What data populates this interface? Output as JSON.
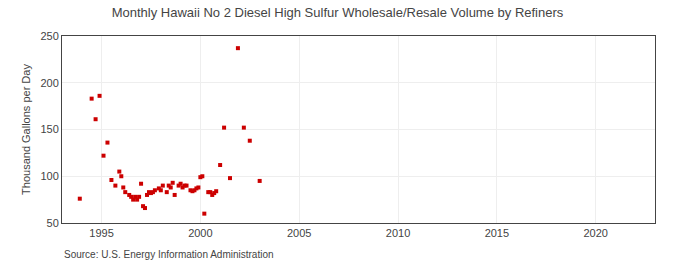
{
  "chart_data": {
    "type": "scatter",
    "title": "Monthly Hawaii No 2 Diesel High Sulfur Wholesale/Resale Volume by Refiners",
    "ylabel": "Thousand Gallons per Day",
    "annotations": [
      "Source: U.S. Energy Information Administration"
    ],
    "color": "#cc0000",
    "marker": "square",
    "grid": true,
    "xlim": [
      1993.0,
      2023.0
    ],
    "ylim": [
      50,
      250
    ],
    "xticks": [
      1995,
      2000,
      2005,
      2010,
      2015,
      2020
    ],
    "yticks": [
      50,
      100,
      150,
      200,
      250
    ],
    "x": [
      1993.9,
      1994.5,
      1994.7,
      1994.9,
      1995.1,
      1995.3,
      1995.5,
      1995.7,
      1995.9,
      1996.0,
      1996.1,
      1996.2,
      1996.4,
      1996.5,
      1996.6,
      1996.7,
      1996.8,
      1996.9,
      1997.0,
      1997.1,
      1997.2,
      1997.3,
      1997.4,
      1997.5,
      1997.6,
      1997.7,
      1997.9,
      1998.0,
      1998.1,
      1998.3,
      1998.4,
      1998.5,
      1998.6,
      1998.7,
      1998.9,
      1999.0,
      1999.1,
      1999.2,
      1999.3,
      1999.5,
      1999.6,
      1999.7,
      1999.8,
      1999.9,
      2000.0,
      2000.1,
      2000.2,
      2000.4,
      2000.5,
      2000.6,
      2000.7,
      2000.8,
      2001.0,
      2001.2,
      2001.5,
      2001.9,
      2002.2,
      2002.5,
      2003.0
    ],
    "values": [
      76,
      183,
      161,
      186,
      122,
      136,
      96,
      90,
      105,
      100,
      88,
      83,
      80,
      78,
      75,
      78,
      75,
      78,
      92,
      68,
      66,
      80,
      83,
      82,
      83,
      85,
      87,
      85,
      90,
      83,
      90,
      88,
      93,
      80,
      90,
      92,
      88,
      90,
      90,
      85,
      84,
      85,
      87,
      88,
      99,
      100,
      60,
      83,
      83,
      80,
      82,
      84,
      112,
      152,
      98,
      237,
      152,
      138,
      95
    ]
  }
}
